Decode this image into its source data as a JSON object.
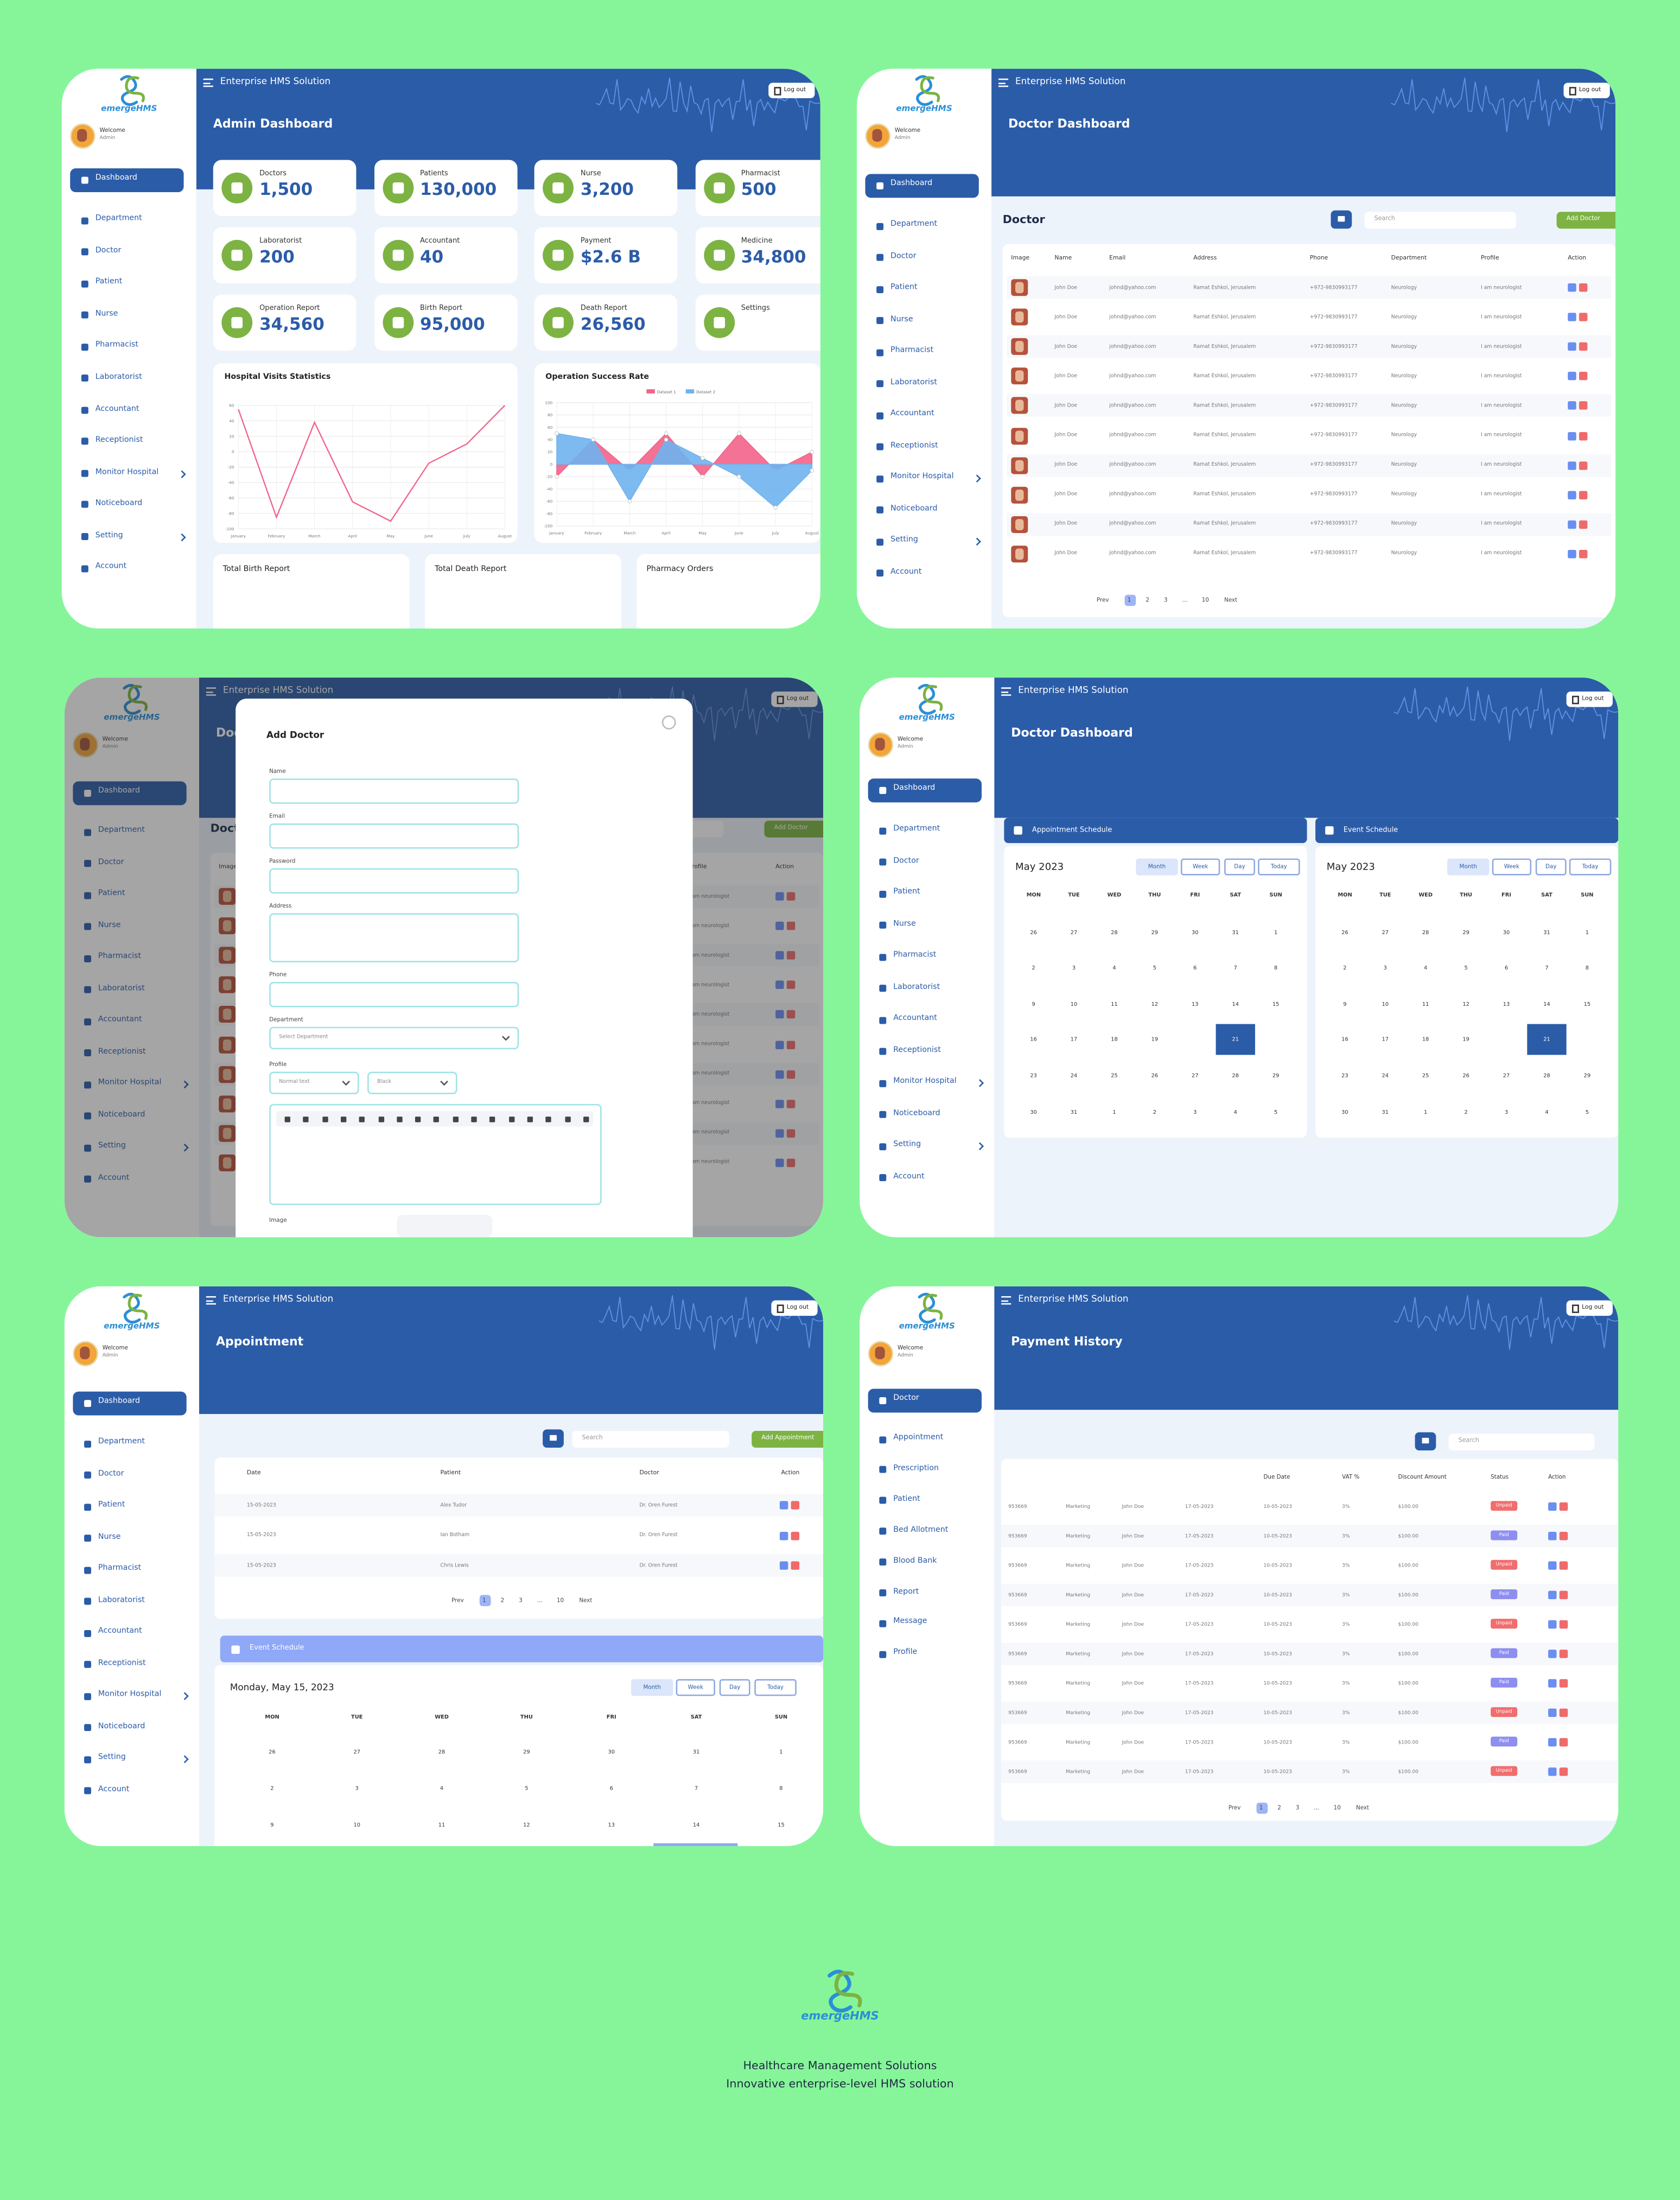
{
  "brand": "emergeHMS",
  "common": {
    "app_title": "Enterprise HMS Solution",
    "logout": "Log out",
    "welcome": "Welcome",
    "role": "Admin",
    "search": "Search",
    "pagination": [
      "Prev",
      "1",
      "2",
      "3",
      "...",
      "10",
      "Next"
    ]
  },
  "admin_nav": [
    "Dashboard",
    "Department",
    "Doctor",
    "Patient",
    "Nurse",
    "Pharmacist",
    "Laboratorist",
    "Accountant",
    "Receptionist",
    "Monitor Hospital",
    "Noticeboard",
    "Setting",
    "Account"
  ],
  "doctor_nav": [
    "Doctor",
    "Appointment",
    "Prescription",
    "Patient",
    "Bed Allotment",
    "Blood Bank",
    "Report",
    "Message",
    "Profile"
  ],
  "admin_dashboard": {
    "title": "Admin Dashboard",
    "stats": [
      {
        "label": "Doctors",
        "value": "1,500"
      },
      {
        "label": "Patients",
        "value": "130,000"
      },
      {
        "label": "Nurse",
        "value": "3,200"
      },
      {
        "label": "Pharmacist",
        "value": "500"
      },
      {
        "label": "Laboratorist",
        "value": "200"
      },
      {
        "label": "Accountant",
        "value": "40"
      },
      {
        "label": "Payment",
        "value": "$2.6 B"
      },
      {
        "label": "Medicine",
        "value": "34,800"
      },
      {
        "label": "Operation Report",
        "value": "34,560"
      },
      {
        "label": "Birth Report",
        "value": "95,000"
      },
      {
        "label": "Death Report",
        "value": "26,560"
      },
      {
        "label": "Settings"
      }
    ],
    "visits_chart": {
      "type": "line",
      "title": "Hospital Visits Statistics",
      "categories": [
        "January",
        "February",
        "March",
        "April",
        "May",
        "June",
        "July",
        "August"
      ],
      "values": [
        55,
        -85,
        38,
        -65,
        -90,
        -15,
        10,
        60
      ],
      "color": "#f2638a",
      "ylim": [
        -100,
        60
      ],
      "yticks": [
        60,
        40,
        20,
        0,
        -20,
        -40,
        -60,
        -80,
        -100
      ],
      "grid": true
    },
    "operation_chart": {
      "type": "area",
      "title": "Operation Success Rate",
      "categories": [
        "January",
        "February",
        "March",
        "April",
        "May",
        "June",
        "July",
        "August"
      ],
      "series": [
        {
          "name": "Dataset 1",
          "color": "#f2638a",
          "values": [
            -20,
            40,
            -10,
            50,
            -20,
            50,
            -10,
            20
          ]
        },
        {
          "name": "Dataset 2",
          "color": "#6fb3ee",
          "values": [
            50,
            40,
            -60,
            40,
            10,
            -20,
            -70,
            -10
          ]
        }
      ],
      "ylim": [
        -100,
        100
      ],
      "yticks": [
        100,
        80,
        60,
        40,
        20,
        0,
        -20,
        -40,
        -60,
        -80,
        -100
      ],
      "grid": true
    },
    "bottom_cards": [
      "Total Birth Report",
      "Total Death Report",
      "Pharmacy Orders"
    ]
  },
  "doctor_list": {
    "title": "Doctor Dashboard",
    "section": "Doctor",
    "add_button": "Add Doctor",
    "columns": [
      "Image",
      "Name",
      "Email",
      "Address",
      "Phone",
      "Department",
      "Profile",
      "Action"
    ],
    "rows": [
      [
        "John Doe",
        "johnd@yahoo.com",
        "Ramat Eshkol, Jerusalem",
        "+972-9830993177",
        "Neurology",
        "I am neurologist"
      ],
      [
        "John Doe",
        "johnd@yahoo.com",
        "Ramat Eshkol, Jerusalem",
        "+972-9830993177",
        "Neurology",
        "I am neurologist"
      ],
      [
        "John Doe",
        "johnd@yahoo.com",
        "Ramat Eshkol, Jerusalem",
        "+972-9830993177",
        "Neurology",
        "I am neurologist"
      ],
      [
        "John Doe",
        "johnd@yahoo.com",
        "Ramat Eshkol, Jerusalem",
        "+972-9830993177",
        "Neurology",
        "I am neurologist"
      ],
      [
        "John Doe",
        "johnd@yahoo.com",
        "Ramat Eshkol, Jerusalem",
        "+972-9830993177",
        "Neurology",
        "I am neurologist"
      ],
      [
        "John Doe",
        "johnd@yahoo.com",
        "Ramat Eshkol, Jerusalem",
        "+972-9830993177",
        "Neurology",
        "I am neurologist"
      ],
      [
        "John Doe",
        "johnd@yahoo.com",
        "Ramat Eshkol, Jerusalem",
        "+972-9830993177",
        "Neurology",
        "I am neurologist"
      ],
      [
        "John Doe",
        "johnd@yahoo.com",
        "Ramat Eshkol, Jerusalem",
        "+972-9830993177",
        "Neurology",
        "I am neurologist"
      ],
      [
        "John Doe",
        "johnd@yahoo.com",
        "Ramat Eshkol, Jerusalem",
        "+972-9830993177",
        "Neurology",
        "I am neurologist"
      ],
      [
        "John Doe",
        "johnd@yahoo.com",
        "Ramat Eshkol, Jerusalem",
        "+972-9830993177",
        "Neurology",
        "I am neurologist"
      ]
    ]
  },
  "add_doctor": {
    "title": "Add Doctor",
    "fields": [
      "Name",
      "Email",
      "Password",
      "Address",
      "Phone",
      "Department",
      "Profile"
    ],
    "department_placeholder": "Select Department",
    "text_style": "Normal text",
    "text_color": "Black",
    "image": "Image"
  },
  "schedule": {
    "title": "Doctor Dashboard",
    "panels": [
      "Appointment Schedule",
      "Event Schedule"
    ],
    "month": "May 2023",
    "views": [
      "Month",
      "Week",
      "Day",
      "Today"
    ],
    "weekdays": [
      "MON",
      "TUE",
      "WED",
      "THU",
      "FRI",
      "SAT",
      "SUN"
    ],
    "weeks": [
      [
        26,
        27,
        28,
        29,
        30,
        31,
        1
      ],
      [
        2,
        3,
        4,
        5,
        6,
        7,
        8
      ],
      [
        9,
        10,
        11,
        12,
        13,
        14,
        15
      ],
      [
        16,
        17,
        18,
        19,
        null,
        21,
        null
      ],
      [
        23,
        24,
        25,
        26,
        27,
        28,
        29
      ],
      [
        30,
        31,
        1,
        2,
        3,
        4,
        5
      ]
    ]
  },
  "appointment": {
    "title": "Appointment",
    "add_button": "Add Appointment",
    "columns": [
      "Date",
      "Patient",
      "Doctor",
      "Action"
    ],
    "rows": [
      [
        "15-05-2023",
        "Alex Tudor",
        "Dr. Oren Furest"
      ],
      [
        "15-05-2023",
        "Ian Botham",
        "Dr. Oren Furest"
      ],
      [
        "15-05-2023",
        "Chris Lewis",
        "Dr. Oren Furest"
      ]
    ],
    "event_title": "Event Schedule",
    "date": "Monday, May 15, 2023"
  },
  "payments": {
    "title": "Payment History",
    "columns": [
      "Due Date",
      "VAT %",
      "Discount Amount",
      "Status",
      "Action"
    ],
    "rows": [
      [
        "953669",
        "Marketing",
        "John Doe",
        "17-05-2023",
        "10-05-2023",
        "3%",
        "$100.00",
        "Unpaid"
      ],
      [
        "953669",
        "Marketing",
        "John Doe",
        "17-05-2023",
        "10-05-2023",
        "3%",
        "$100.00",
        "Paid"
      ],
      [
        "953669",
        "Marketing",
        "John Doe",
        "17-05-2023",
        "10-05-2023",
        "3%",
        "$100.00",
        "Unpaid"
      ],
      [
        "953669",
        "Marketing",
        "John Doe",
        "17-05-2023",
        "10-05-2023",
        "3%",
        "$100.00",
        "Paid"
      ],
      [
        "953669",
        "Marketing",
        "John Doe",
        "17-05-2023",
        "10-05-2023",
        "3%",
        "$100.00",
        "Unpaid"
      ],
      [
        "953669",
        "Marketing",
        "John Doe",
        "17-05-2023",
        "10-05-2023",
        "3%",
        "$100.00",
        "Paid"
      ],
      [
        "953669",
        "Marketing",
        "John Doe",
        "17-05-2023",
        "10-05-2023",
        "3%",
        "$100.00",
        "Paid"
      ],
      [
        "953669",
        "Marketing",
        "John Doe",
        "17-05-2023",
        "10-05-2023",
        "3%",
        "$100.00",
        "Unpaid"
      ],
      [
        "953669",
        "Marketing",
        "John Doe",
        "17-05-2023",
        "10-05-2023",
        "3%",
        "$100.00",
        "Paid"
      ],
      [
        "953669",
        "Marketing",
        "John Doe",
        "17-05-2023",
        "10-05-2023",
        "3%",
        "$100.00",
        "Unpaid"
      ]
    ]
  },
  "footer": {
    "line1": "Healthcare Management Solutions",
    "line2": "Innovative enterprise-level HMS solution"
  }
}
